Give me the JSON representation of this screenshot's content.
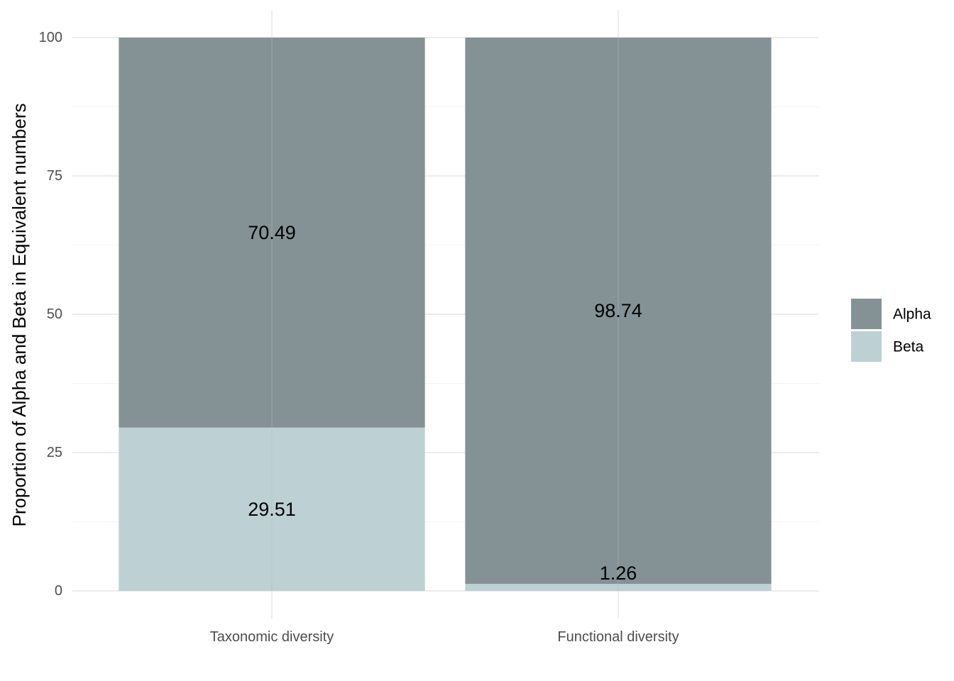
{
  "chart_data": {
    "type": "bar",
    "stacked": true,
    "categories": [
      "Taxonomic diversity",
      "Functional diversity"
    ],
    "series": [
      {
        "name": "Beta",
        "values": [
          29.51,
          1.26
        ],
        "color": "#bdd0d3",
        "labels": [
          "29.51",
          "1.26"
        ]
      },
      {
        "name": "Alpha",
        "values": [
          70.49,
          98.74
        ],
        "color": "#849296",
        "labels": [
          "70.49",
          "98.74"
        ]
      }
    ],
    "title": "",
    "xlabel": "",
    "ylabel": "Proportion of Alpha and Beta in Equivalent numbers",
    "ylim": [
      0,
      100
    ],
    "yticks": [
      "0",
      "25",
      "50",
      "75",
      "100"
    ],
    "grid": true,
    "legend": {
      "position": "right",
      "entries": [
        "Alpha",
        "Beta"
      ]
    }
  }
}
